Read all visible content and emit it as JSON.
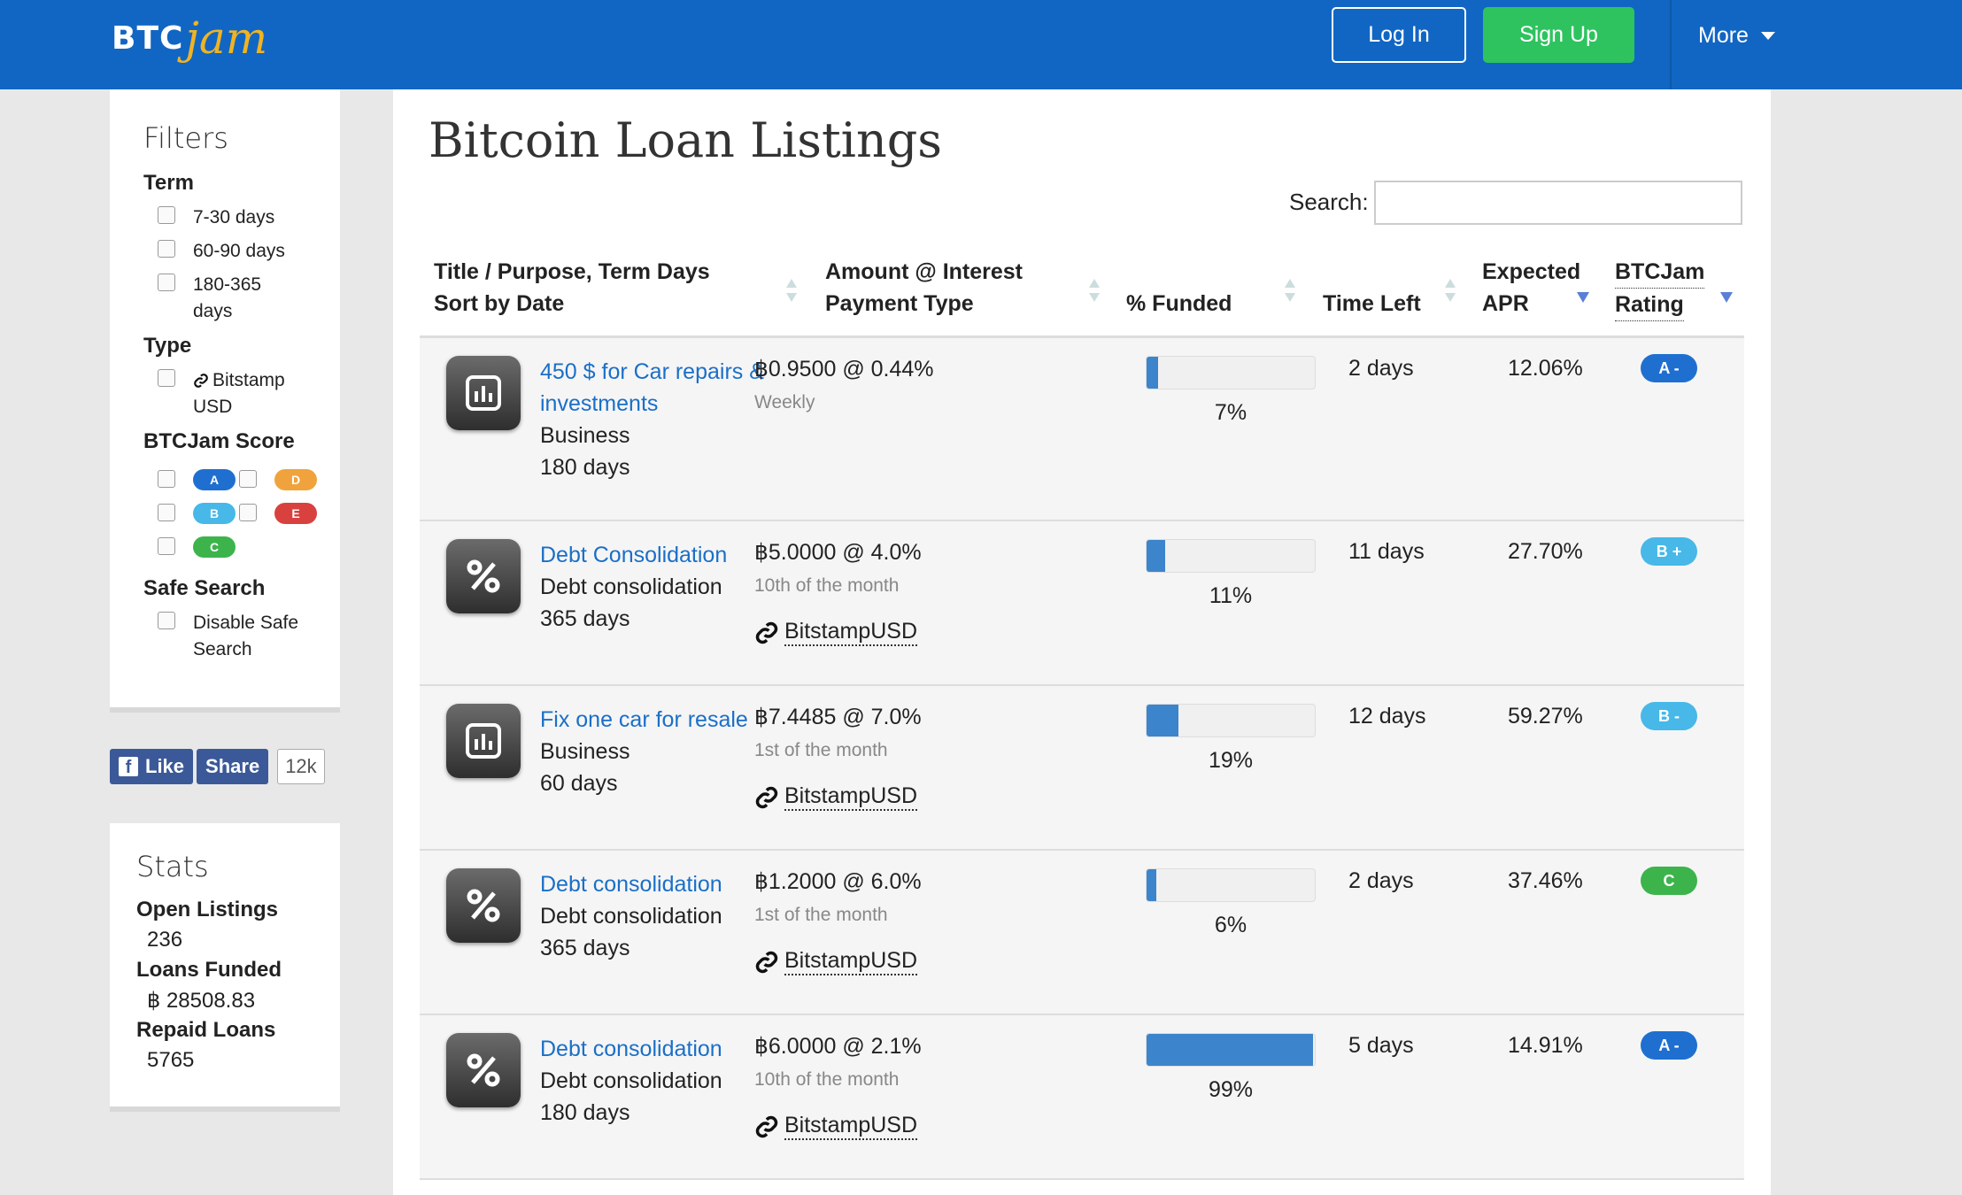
{
  "header": {
    "logo_btc": "BTC",
    "logo_jam": "jam",
    "login_label": "Log In",
    "signup_label": "Sign Up",
    "more_label": "More"
  },
  "filters": {
    "title": "Filters",
    "term_heading": "Term",
    "term_options": [
      "7-30 days",
      "60-90 days",
      "180-365",
      "days"
    ],
    "type_heading": "Type",
    "type_options": [
      "Bitstamp",
      "USD"
    ],
    "score_heading": "BTCJam Score",
    "score_labels": [
      "A",
      "B",
      "C",
      "D",
      "E"
    ],
    "safe_heading": "Safe Search",
    "safe_options": [
      "Disable Safe",
      "Search"
    ]
  },
  "facebook": {
    "like_label": "Like",
    "share_label": "Share",
    "count": "12k"
  },
  "stats": {
    "title": "Stats",
    "open_label": "Open Listings",
    "open_value": "236",
    "funded_label": "Loans Funded",
    "funded_value": "฿ 28508.83",
    "repaid_label": "Repaid Loans",
    "repaid_value": "5765"
  },
  "main": {
    "title": "Bitcoin Loan Listings",
    "search_label": "Search:",
    "search_value": "",
    "columns": {
      "title_1": "Title / Purpose, Term Days",
      "title_2": "Sort by Date",
      "amount_1": "Amount @ Interest",
      "amount_2": "Payment Type",
      "funded": "% Funded",
      "time": "Time Left",
      "apr_1": "Expected",
      "apr_2": "APR",
      "rating_1": "BTCJam",
      "rating_2": "Rating"
    }
  },
  "listings": [
    {
      "icon": "chart-icon",
      "title": "450 $ for Car repairs & investments",
      "purpose": "Business",
      "term": "180 days",
      "amount": "฿0.9500 @ 0.44%",
      "payment": "Weekly",
      "link": "",
      "funded": "7%",
      "funded_fraction": 0.07,
      "time_left": "2 days",
      "apr": "12.06%",
      "rating": "A -",
      "rating_color": "#1f6fd0"
    },
    {
      "icon": "percent-icon",
      "title": "Debt Consolidation",
      "purpose": "Debt consolidation",
      "term": "365 days",
      "amount": "฿5.0000 @ 4.0%",
      "payment": "10th of the month",
      "link": "BitstampUSD",
      "funded": "11%",
      "funded_fraction": 0.11,
      "time_left": "11 days",
      "apr": "27.70%",
      "rating": "B +",
      "rating_color": "#47b8e8"
    },
    {
      "icon": "chart-icon",
      "title": "Fix one car for resale",
      "purpose": "Business",
      "term": "60 days",
      "amount": "฿7.4485 @ 7.0%",
      "payment": "1st of the month",
      "link": "BitstampUSD",
      "funded": "19%",
      "funded_fraction": 0.19,
      "time_left": "12 days",
      "apr": "59.27%",
      "rating": "B -",
      "rating_color": "#47b8e8"
    },
    {
      "icon": "percent-icon",
      "title": "Debt consolidation",
      "purpose": "Debt consolidation",
      "term": "365 days",
      "amount": "฿1.2000 @ 6.0%",
      "payment": "1st of the month",
      "link": "BitstampUSD",
      "funded": "6%",
      "funded_fraction": 0.06,
      "time_left": "2 days",
      "apr": "37.46%",
      "rating": "C",
      "rating_color": "#3cb44b"
    },
    {
      "icon": "percent-icon",
      "title": "Debt consolidation",
      "purpose": "Debt consolidation",
      "term": "180 days",
      "amount": "฿6.0000 @ 2.1%",
      "payment": "10th of the month",
      "link": "BitstampUSD",
      "funded": "99%",
      "funded_fraction": 0.99,
      "time_left": "5 days",
      "apr": "14.91%",
      "rating": "A -",
      "rating_color": "#1f6fd0"
    }
  ],
  "colors": {
    "header_bg": "#1166c4",
    "signup_bg": "#2ec35f",
    "link": "#1a6fc8",
    "score_a": "#1f6fd0",
    "score_b": "#47b8e8",
    "score_c": "#3cb44b",
    "score_d": "#f0a33c",
    "score_e": "#d9413e"
  }
}
